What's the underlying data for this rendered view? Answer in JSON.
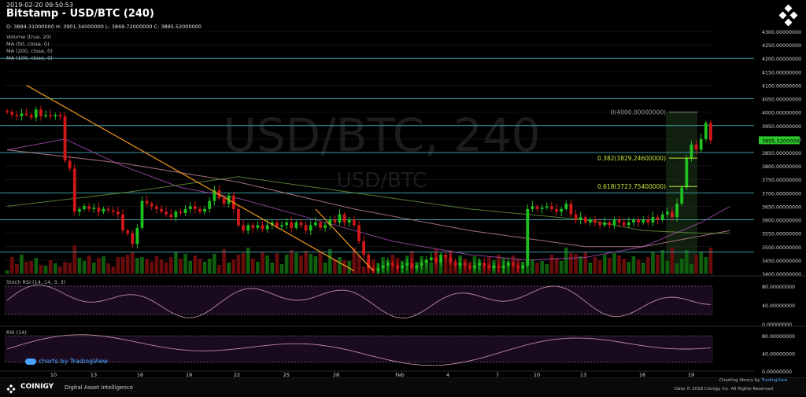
{
  "header": {
    "datetime": "2019-02-20 09:50:53",
    "title": "Bitstamp - USD/BTC (240)",
    "ohlc": "O: 3894.31000000 H: 3901.34000000 L: 3869.72000000 C: 3895.52000000",
    "indicators": [
      "Volume (true, 20)",
      "MA (50, close, 0)",
      "MA (200, close, 0)",
      "MA (100, close, 0)"
    ]
  },
  "watermark": {
    "main": "USD/BTC, 240",
    "sub": "USD/BTC"
  },
  "footer": {
    "brand": "COINIGY",
    "tagline": "Digital Asset Intelligence",
    "tv_link": "charts by TradingView",
    "library": "Charting library by",
    "library_brand": "TradingView",
    "copyright": "Data © 2018 Coinigy Inc. All Rights Reserved"
  },
  "colors": {
    "up": "#1fbf1f",
    "down": "#d01818",
    "hline": "#3a9aa0",
    "trend": "#f29a1e",
    "ma50": "#b04fc0",
    "ma100": "#c98a9a",
    "ma200": "#6b9a3a",
    "fib": "#c7e83b"
  },
  "chart_data": {
    "type": "candlestick",
    "symbol": "USD/BTC",
    "exchange": "Bitstamp",
    "interval": "240",
    "ylim": [
      3400,
      4300
    ],
    "y_ticks": [
      "3400.00000000",
      "3450.00000000",
      "3500.00000000",
      "3550.00000000",
      "3600.00000000",
      "3650.00000000",
      "3700.00000000",
      "3750.00000000",
      "3800.00000000",
      "3850.00000000",
      "3900.00000000",
      "3950.00000000",
      "4000.00000000",
      "4050.00000000",
      "4100.00000000",
      "4150.00000000",
      "4200.00000000",
      "4250.00000000",
      "4300.00000000"
    ],
    "x_ticks": [
      "10",
      "13",
      "16",
      "19",
      "22",
      "25",
      "28",
      "Feb",
      "4",
      "7",
      "10",
      "13",
      "16",
      "19"
    ],
    "last_price": "3895.52000000",
    "horizontal_levels": [
      3480,
      3600,
      3700,
      3850,
      3950,
      4050,
      4200
    ],
    "fibonacci": [
      {
        "label": "0(4000.00000000)",
        "value": 4000
      },
      {
        "label": "0.382(3829.24600000)",
        "value": 3829.246
      },
      {
        "label": "0.618(3723.75400000)",
        "value": 3723.754
      }
    ],
    "close_series": [
      4000,
      3990,
      3985,
      3995,
      3990,
      3980,
      4010,
      3985,
      3990,
      3985,
      3990,
      3985,
      3820,
      3790,
      3630,
      3640,
      3650,
      3640,
      3645,
      3630,
      3640,
      3635,
      3630,
      3620,
      3560,
      3550,
      3510,
      3570,
      3670,
      3660,
      3650,
      3640,
      3630,
      3620,
      3610,
      3630,
      3625,
      3640,
      3650,
      3640,
      3630,
      3640,
      3670,
      3710,
      3680,
      3660,
      3690,
      3640,
      3580,
      3560,
      3580,
      3570,
      3580,
      3565,
      3580,
      3590,
      3575,
      3580,
      3590,
      3570,
      3590,
      3580,
      3560,
      3580,
      3590,
      3570,
      3580,
      3600,
      3590,
      3620,
      3590,
      3600,
      3580,
      3520,
      3470,
      3420,
      3410,
      3420,
      3430,
      3440,
      3430,
      3420,
      3430,
      3440,
      3420,
      3430,
      3440,
      3450,
      3460,
      3440,
      3470,
      3460,
      3440,
      3430,
      3440,
      3430,
      3420,
      3430,
      3440,
      3430,
      3420,
      3430,
      3420,
      3430,
      3440,
      3430,
      3420,
      3430,
      3640,
      3650,
      3640,
      3645,
      3650,
      3640,
      3630,
      3640,
      3660,
      3620,
      3600,
      3610,
      3590,
      3600,
      3590,
      3580,
      3590,
      3580,
      3600,
      3590,
      3580,
      3590,
      3600,
      3590,
      3600,
      3590,
      3610,
      3600,
      3620,
      3630,
      3610,
      3660,
      3720,
      3830,
      3880,
      3860,
      3900,
      3960,
      3895
    ],
    "ma50": [
      [
        0,
        3860
      ],
      [
        12,
        3900
      ],
      [
        24,
        3800
      ],
      [
        36,
        3720
      ],
      [
        48,
        3680
      ],
      [
        60,
        3620
      ],
      [
        72,
        3560
      ],
      [
        80,
        3520
      ],
      [
        96,
        3470
      ],
      [
        108,
        3450
      ],
      [
        120,
        3460
      ],
      [
        132,
        3500
      ],
      [
        144,
        3590
      ],
      [
        150,
        3650
      ]
    ],
    "ma100": [
      [
        0,
        3860
      ],
      [
        24,
        3810
      ],
      [
        48,
        3740
      ],
      [
        72,
        3640
      ],
      [
        96,
        3560
      ],
      [
        120,
        3500
      ],
      [
        132,
        3500
      ],
      [
        144,
        3540
      ],
      [
        150,
        3560
      ]
    ],
    "ma200": [
      [
        0,
        3650
      ],
      [
        24,
        3700
      ],
      [
        48,
        3760
      ],
      [
        72,
        3700
      ],
      [
        96,
        3640
      ],
      [
        120,
        3600
      ],
      [
        132,
        3560
      ],
      [
        144,
        3550
      ],
      [
        150,
        3550
      ]
    ],
    "trendlines": [
      [
        [
          4,
          4100
        ],
        [
          72,
          3410
        ]
      ],
      [
        [
          64,
          3640
        ],
        [
          76,
          3410
        ]
      ]
    ],
    "stoch_rsi": {
      "name": "Stoch RSI (14, 14, 3, 3)",
      "ylim": [
        0,
        100
      ],
      "y_ticks": [
        "0.00000000",
        "40.00000000",
        "80.00000000"
      ]
    },
    "rsi": {
      "name": "RSI (14)",
      "ylim": [
        0,
        100
      ],
      "y_ticks": [
        "0.00000000",
        "40.00000000",
        "80.00000000"
      ]
    }
  }
}
